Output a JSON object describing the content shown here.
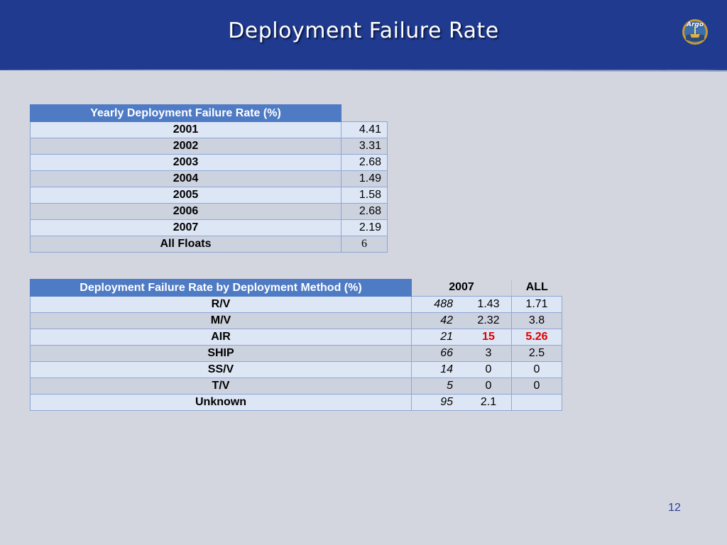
{
  "slide": {
    "title": "Deployment Failure Rate",
    "logo_text": "Argo",
    "page_number": "12"
  },
  "table1": {
    "header": "Yearly Deployment Failure Rate (%)",
    "rows": [
      {
        "label": "2001",
        "value": "4.41"
      },
      {
        "label": "2002",
        "value": "3.31"
      },
      {
        "label": "2003",
        "value": "2.68"
      },
      {
        "label": "2004",
        "value": "1.49"
      },
      {
        "label": "2005",
        "value": "1.58"
      },
      {
        "label": "2006",
        "value": "2.68"
      },
      {
        "label": "2007",
        "value": "2.19"
      },
      {
        "label": "All Floats",
        "value": "6"
      }
    ]
  },
  "table2": {
    "header": "Deployment Failure Rate by Deployment Method (%)",
    "col_2007": "2007",
    "col_all": "ALL",
    "rows": [
      {
        "label": "R/V",
        "count": "488",
        "v2007": "1.43",
        "all": "1.71"
      },
      {
        "label": "M/V",
        "count": "42",
        "v2007": "2.32",
        "all": "3.8"
      },
      {
        "label": "AIR",
        "count": "21",
        "v2007": "15",
        "all": "5.26"
      },
      {
        "label": "SHIP",
        "count": "66",
        "v2007": "3",
        "all": "2.5"
      },
      {
        "label": "SS/V",
        "count": "14",
        "v2007": "0",
        "all": "0"
      },
      {
        "label": "T/V",
        "count": "5",
        "v2007": "0",
        "all": "0"
      },
      {
        "label": "Unknown",
        "count": "95",
        "v2007": "2.1",
        "all": ""
      }
    ]
  },
  "colors": {
    "header_band": "#1f3a8f",
    "table_header": "#4f7bc4",
    "highlight": "#e00000"
  }
}
